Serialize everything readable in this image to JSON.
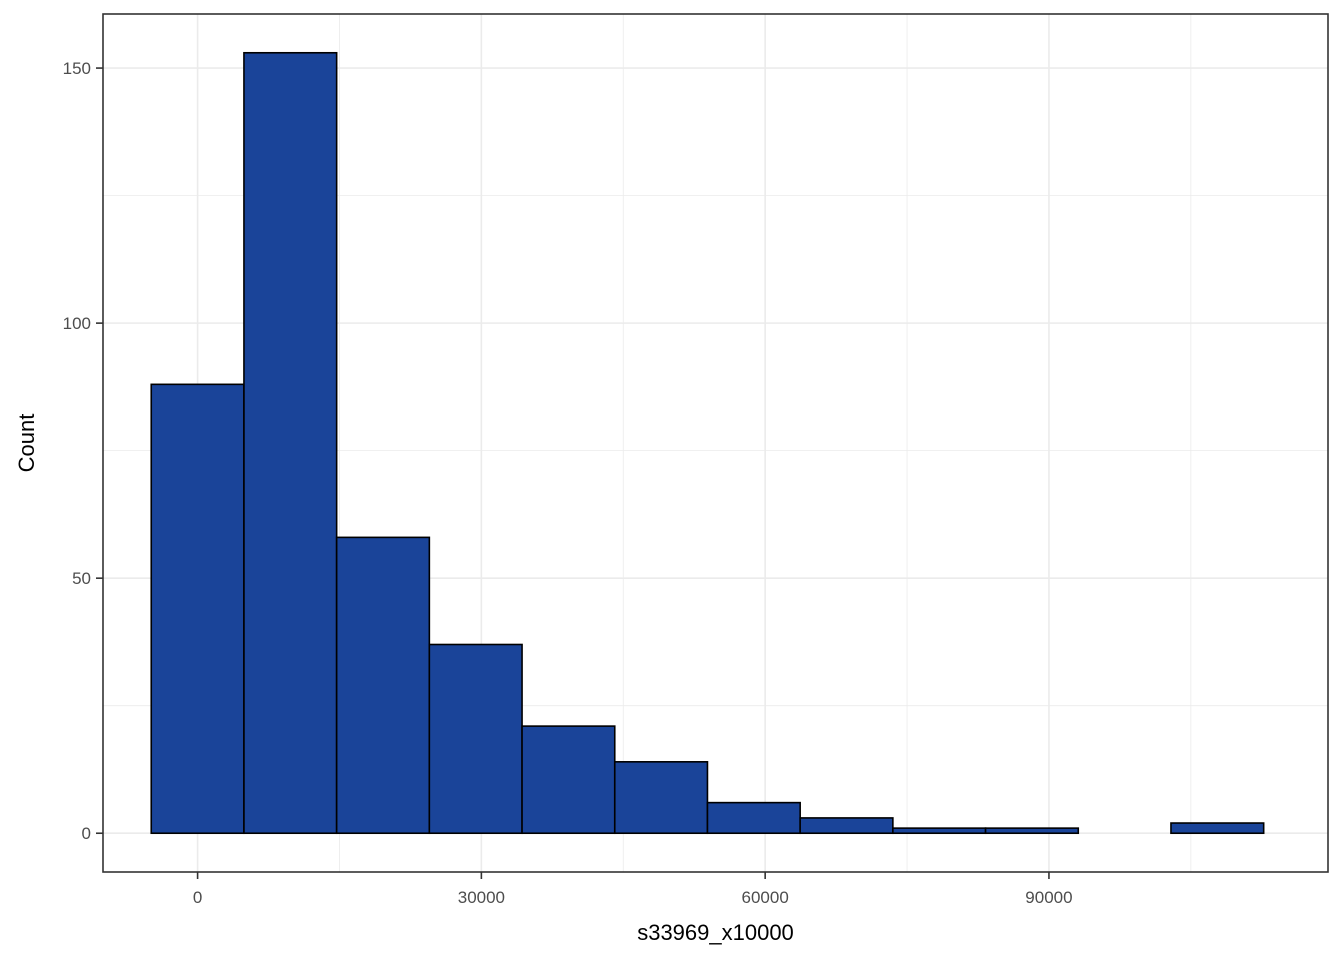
{
  "chart_data": {
    "type": "bar",
    "subtype": "histogram",
    "xlabel": "s33969_x10000",
    "ylabel": "Count",
    "bin_width": 9800,
    "bins": [
      {
        "center": 0,
        "count": 88
      },
      {
        "center": 9800,
        "count": 153
      },
      {
        "center": 19600,
        "count": 58
      },
      {
        "center": 29400,
        "count": 37
      },
      {
        "center": 39200,
        "count": 21
      },
      {
        "center": 49000,
        "count": 14
      },
      {
        "center": 58800,
        "count": 6
      },
      {
        "center": 68600,
        "count": 3
      },
      {
        "center": 78400,
        "count": 1
      },
      {
        "center": 88200,
        "count": 1
      },
      {
        "center": 98000,
        "count": 0
      },
      {
        "center": 107800,
        "count": 2
      }
    ],
    "xlim": [
      -10000,
      119500
    ],
    "ylim": [
      -7.6,
      160.6
    ],
    "x_ticks": [
      0,
      30000,
      60000,
      90000
    ],
    "x_tick_labels": [
      "0",
      "30000",
      "60000",
      "90000"
    ],
    "y_ticks": [
      0,
      50,
      100,
      150
    ],
    "y_tick_labels": [
      "0",
      "50",
      "100",
      "150"
    ],
    "grid": true,
    "theme": "bw",
    "colors": {
      "fill": "#1a4499",
      "outline": "#000000",
      "grid": "#ebebeb",
      "panel_border": "#333333"
    }
  }
}
